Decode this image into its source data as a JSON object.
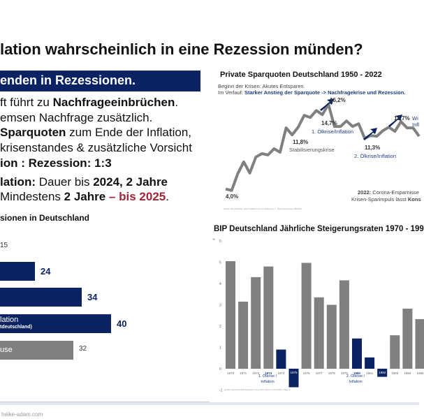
{
  "title": "lation wahrscheinlich in eine Rezession münden?",
  "banner": "enden in Rezessionen.",
  "lines": [
    {
      "a": "ft führt zu ",
      "b": "Nachfrageeinbrüchen",
      "c": "."
    },
    {
      "a": "emsen Nachfrage zusätzlich."
    },
    {
      "b": "Sparquoten",
      "a": " zum Ende der Inflation,"
    },
    {
      "a": "krisenstandes & zusätzliche Vorsicht"
    },
    {
      "b1": "ion : Rezession",
      "a": ": 1:3"
    },
    {
      "b": "lation:",
      "a": " Dauer bis ",
      "b2": "2024, 2 Jahre"
    },
    {
      "a": " Mindestens ",
      "b": "2 Jahre",
      "r": " – bis 2025",
      "c": "."
    }
  ],
  "left_chart": {
    "title": "sionen in Deutschland",
    "top_value": "15",
    "bars": [
      {
        "value": 24,
        "label": "",
        "sub": "",
        "color": "#0b2363"
      },
      {
        "value": 34,
        "label": "",
        "sub": "",
        "color": "#0b2363"
      },
      {
        "value": 40,
        "label": "lation",
        "sub": "tdeutschland)",
        "color": "#0b2363"
      },
      {
        "value": 32,
        "label": "use",
        "sub": "",
        "color": "#808080"
      }
    ]
  },
  "footer": "heike-adam.com",
  "chart_data": [
    {
      "type": "line",
      "title": "Private Sparquoten Deutschland 1950 - 2022",
      "subtitle1": "Beginn der Krisen: Akutes Entsparen.",
      "subtitle2_prefix": "Im Verlauf: ",
      "subtitle2_bold": "Starker Anstieg der Sparquote -> Nachfragekrise und Rezession.",
      "values": [
        4.0,
        3.8,
        6.2,
        7.9,
        6.3,
        8.6,
        9.1,
        8.9,
        9.8,
        9.3,
        12.8,
        11.8,
        12.9,
        14.6,
        14.3,
        15.3,
        14.7,
        16.2,
        13.0,
        13.0,
        13.8,
        13.0,
        13.4,
        11.3,
        11.7,
        11.6,
        12.4,
        12.9,
        12.3,
        13.7,
        12.8,
        12.8,
        11.6
      ],
      "color": "#808080",
      "annotations": {
        "a1": "4,0%",
        "a2": "11,8%",
        "a2s": "Stabilisierungskrise",
        "a3": "14,7%",
        "a3s": "1. Ölkrise/Inflation",
        "a4": "16,2%",
        "a5": "11,3%",
        "a5s": "2. Ölkrise/Inflation",
        "a6": "13,7%",
        "a6s1": "Wi",
        "a6s2": "Infl",
        "n1b": "2022:",
        "n1": " Corona-Ersparnisse",
        "n2": "Krisen-Sparimpuls lässt ",
        "n2b": "Kons"
      },
      "source": "Quelle: Bundesbank, 2022 Indikator aus ifo Statement 7 · Wohlmeinhausen 08/2022"
    },
    {
      "type": "bar",
      "title": "BIP Deutschland Jährliche Steigerungsraten 1970 - 199",
      "ylabel": "%",
      "ylim": [
        -1,
        6
      ],
      "yticks": [
        "-1",
        "0",
        "1",
        "2",
        "3",
        "4",
        "5",
        "6"
      ],
      "categories": [
        "1970",
        "1971",
        "1972",
        "1973",
        "1974",
        "1975",
        "1976",
        "1977",
        "1978",
        "1979",
        "1980",
        "1981",
        "1982",
        "1983",
        "1984",
        "1985"
      ],
      "values": [
        5.05,
        3.15,
        4.3,
        4.8,
        0.9,
        -0.87,
        4.97,
        3.35,
        3.0,
        4.15,
        1.42,
        0.53,
        -0.38,
        1.57,
        2.82,
        2.33
      ],
      "highlight": [
        false,
        false,
        false,
        false,
        true,
        true,
        false,
        false,
        false,
        false,
        true,
        true,
        true,
        false,
        false,
        false
      ],
      "colors": {
        "normal": "#808080",
        "highlight": "#0b2363"
      },
      "notes": {
        "n1": "1. Ölkrise /",
        "n1b": "Inflation",
        "n2": "2. Ölkrise /",
        "n2b": "Inflation"
      },
      "source": "Quelle: Deutsche Bundesbank / Long Term Series / 16.3.2022 / Page 4"
    }
  ]
}
